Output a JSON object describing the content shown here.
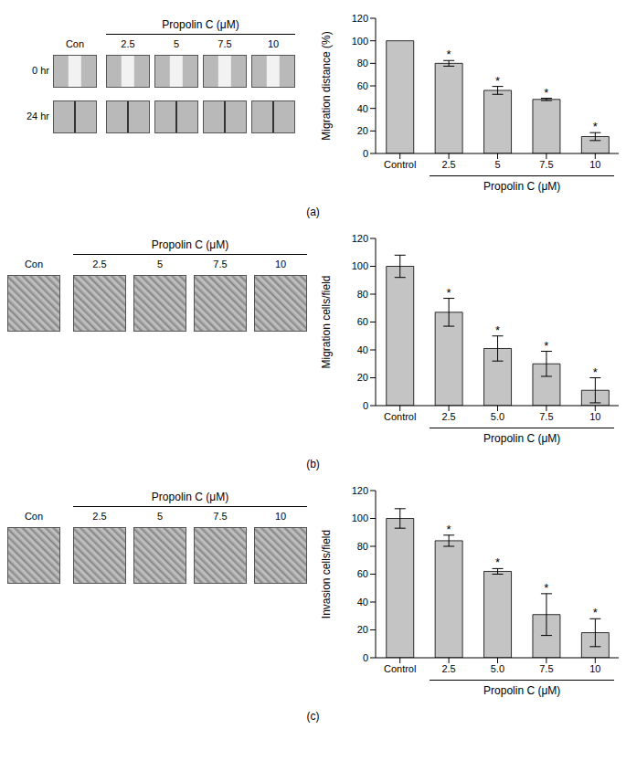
{
  "chart_data": [
    {
      "type": "bar",
      "caption": "(a)",
      "y_label": "Migration distance (%)",
      "x_label": "Propolin C (μM)",
      "categories": [
        "Control",
        "2.5",
        "5",
        "7.5",
        "10"
      ],
      "values": [
        100,
        80,
        56,
        48,
        15
      ],
      "errors": [
        0,
        2.5,
        3.5,
        1,
        3.5
      ],
      "significance": [
        null,
        "*",
        "*",
        "*",
        "*"
      ],
      "color": "#c4c4c4",
      "ylim": [
        0,
        120
      ],
      "yticks": [
        0,
        20,
        40,
        60,
        80,
        100,
        120
      ],
      "grid": false
    },
    {
      "type": "bar",
      "caption": "(b)",
      "y_label": "Migration cells/field",
      "x_label": "Propolin C (μM)",
      "categories": [
        "Control",
        "2.5",
        "5.0",
        "7.5",
        "10"
      ],
      "values": [
        100,
        67,
        41,
        30,
        11
      ],
      "errors": [
        8,
        10,
        9,
        9,
        9
      ],
      "significance": [
        null,
        "*",
        "*",
        "*",
        "*"
      ],
      "color": "#c4c4c4",
      "ylim": [
        0,
        120
      ],
      "yticks": [
        0,
        20,
        40,
        60,
        80,
        100,
        120
      ],
      "grid": false
    },
    {
      "type": "bar",
      "caption": "(c)",
      "y_label": "Invasion cells/field",
      "x_label": "Propolin C (μM)",
      "categories": [
        "Control",
        "2.5",
        "5.0",
        "7.5",
        "10"
      ],
      "values": [
        100,
        84,
        62,
        31,
        18
      ],
      "errors": [
        7,
        4,
        2,
        15,
        10
      ],
      "significance": [
        null,
        "*",
        "*",
        "*",
        "*"
      ],
      "color": "#c4c4c4",
      "ylim": [
        0,
        120
      ],
      "yticks": [
        0,
        20,
        40,
        60,
        80,
        100,
        120
      ],
      "grid": false
    }
  ],
  "micrographs": [
    {
      "header": "Propolin C (μM)",
      "columns": [
        "Con",
        "2.5",
        "5",
        "7.5",
        "10"
      ],
      "rows": [
        "0 hr",
        "24 hr"
      ]
    },
    {
      "header": "Propolin C (μM)",
      "columns": [
        "Con",
        "2.5",
        "5",
        "7.5",
        "10"
      ],
      "rows": []
    },
    {
      "header": "Propolin C (μM)",
      "columns": [
        "Con",
        "2.5",
        "5",
        "7.5",
        "10"
      ],
      "rows": []
    }
  ]
}
